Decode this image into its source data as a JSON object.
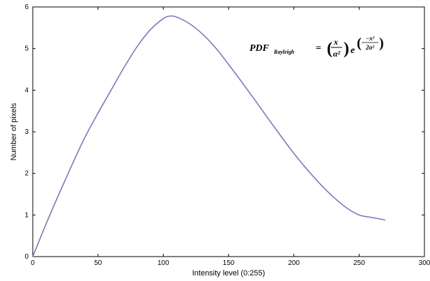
{
  "chart_data": {
    "type": "line",
    "title": "",
    "xlabel": "Intensity level (0:255)",
    "ylabel": "Number of pixels",
    "xlim": [
      0,
      300
    ],
    "ylim": [
      0,
      6
    ],
    "x_ticks": [
      "0",
      "50",
      "100",
      "150",
      "200",
      "250",
      "300"
    ],
    "y_ticks": [
      "0",
      "1",
      "2",
      "3",
      "4",
      "5",
      "6"
    ],
    "grid": false,
    "series": [
      {
        "color": "#7a7ab8",
        "x": [
          0,
          10,
          20,
          30,
          40,
          50,
          60,
          70,
          80,
          90,
          100,
          105,
          110,
          120,
          130,
          140,
          150,
          160,
          170,
          180,
          190,
          200,
          210,
          220,
          230,
          240,
          250,
          260,
          270
        ],
        "values": [
          0.0,
          0.77,
          1.5,
          2.2,
          2.87,
          3.45,
          4.0,
          4.55,
          5.05,
          5.45,
          5.72,
          5.78,
          5.76,
          5.6,
          5.35,
          5.02,
          4.62,
          4.2,
          3.77,
          3.33,
          2.9,
          2.48,
          2.1,
          1.75,
          1.44,
          1.18,
          1.0,
          0.94,
          0.88
        ]
      }
    ],
    "annotation": {
      "name": "PDF",
      "subscript": "Rayleigh",
      "equals": "=",
      "numerator": "x",
      "denominator": "α²",
      "base": "e",
      "exp_numerator": "−x²",
      "exp_denominator": "2α²"
    }
  }
}
